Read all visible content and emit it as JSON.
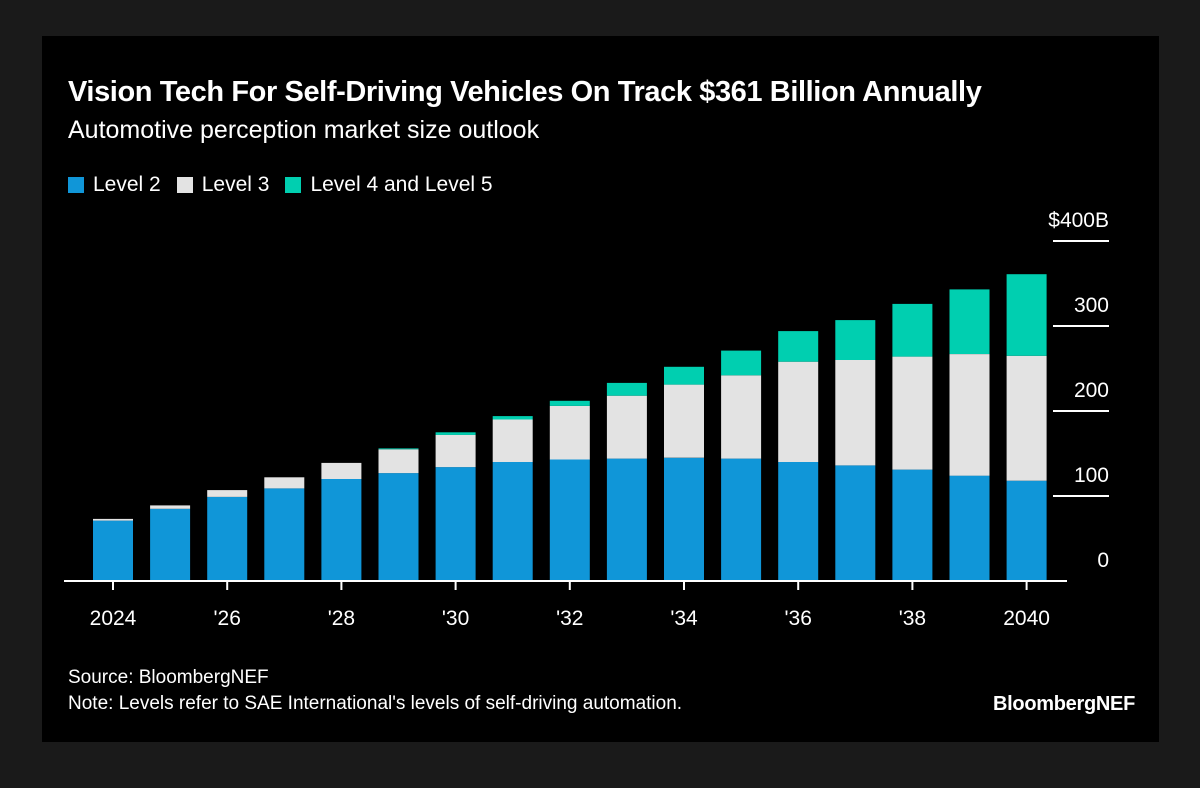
{
  "chart_data": {
    "type": "bar",
    "stacked": true,
    "title": "Vision Tech For Self-Driving Vehicles On Track $361 Billion Annually",
    "subtitle": "Automotive perception market size outlook",
    "xlabel": "",
    "ylabel": "",
    "categories": [
      "2024",
      "2025",
      "2026",
      "2027",
      "2028",
      "2029",
      "2030",
      "2031",
      "2032",
      "2033",
      "2034",
      "2035",
      "2036",
      "2037",
      "2038",
      "2039",
      "2040"
    ],
    "x_tick_labels": [
      {
        "category": "2024",
        "label": "2024"
      },
      {
        "category": "2026",
        "label": "'26"
      },
      {
        "category": "2028",
        "label": "'28"
      },
      {
        "category": "2030",
        "label": "'30"
      },
      {
        "category": "2032",
        "label": "'32"
      },
      {
        "category": "2034",
        "label": "'34"
      },
      {
        "category": "2036",
        "label": "'36"
      },
      {
        "category": "2038",
        "label": "'38"
      },
      {
        "category": "2040",
        "label": "2040"
      }
    ],
    "series": [
      {
        "name": "Level 2",
        "color": "#1096d8",
        "values": [
          71,
          85,
          99,
          109,
          120,
          127,
          134,
          140,
          143,
          144,
          145,
          144,
          140,
          136,
          131,
          124,
          118
        ]
      },
      {
        "name": "Level 3",
        "color": "#e3e3e3",
        "values": [
          2,
          4,
          8,
          13,
          19,
          28,
          38,
          50,
          63,
          74,
          86,
          98,
          118,
          124,
          133,
          143,
          147
        ]
      },
      {
        "name": "Level 4 and Level 5",
        "color": "#00cfb0",
        "values": [
          0,
          0,
          0,
          0,
          0,
          1,
          3,
          4,
          6,
          15,
          21,
          29,
          36,
          47,
          62,
          76,
          96
        ]
      }
    ],
    "ylim": [
      0,
      400
    ],
    "y_ticks": [
      {
        "value": 400,
        "label": "$400B"
      },
      {
        "value": 300,
        "label": "300"
      },
      {
        "value": 200,
        "label": "200"
      },
      {
        "value": 100,
        "label": "100"
      },
      {
        "value": 0,
        "label": "0"
      }
    ],
    "y_axis_position": "right",
    "legend_position": "top-left",
    "grid": false,
    "unit": "USD billions"
  },
  "legend": [
    {
      "label": "Level 2",
      "color": "#1096d8"
    },
    {
      "label": "Level 3",
      "color": "#e3e3e3"
    },
    {
      "label": "Level 4 and Level 5",
      "color": "#00cfb0"
    }
  ],
  "footer": {
    "source": "Source: BloombergNEF",
    "note": "Note: Levels refer to SAE International's levels of self-driving automation.",
    "logo": "BloombergNEF"
  }
}
